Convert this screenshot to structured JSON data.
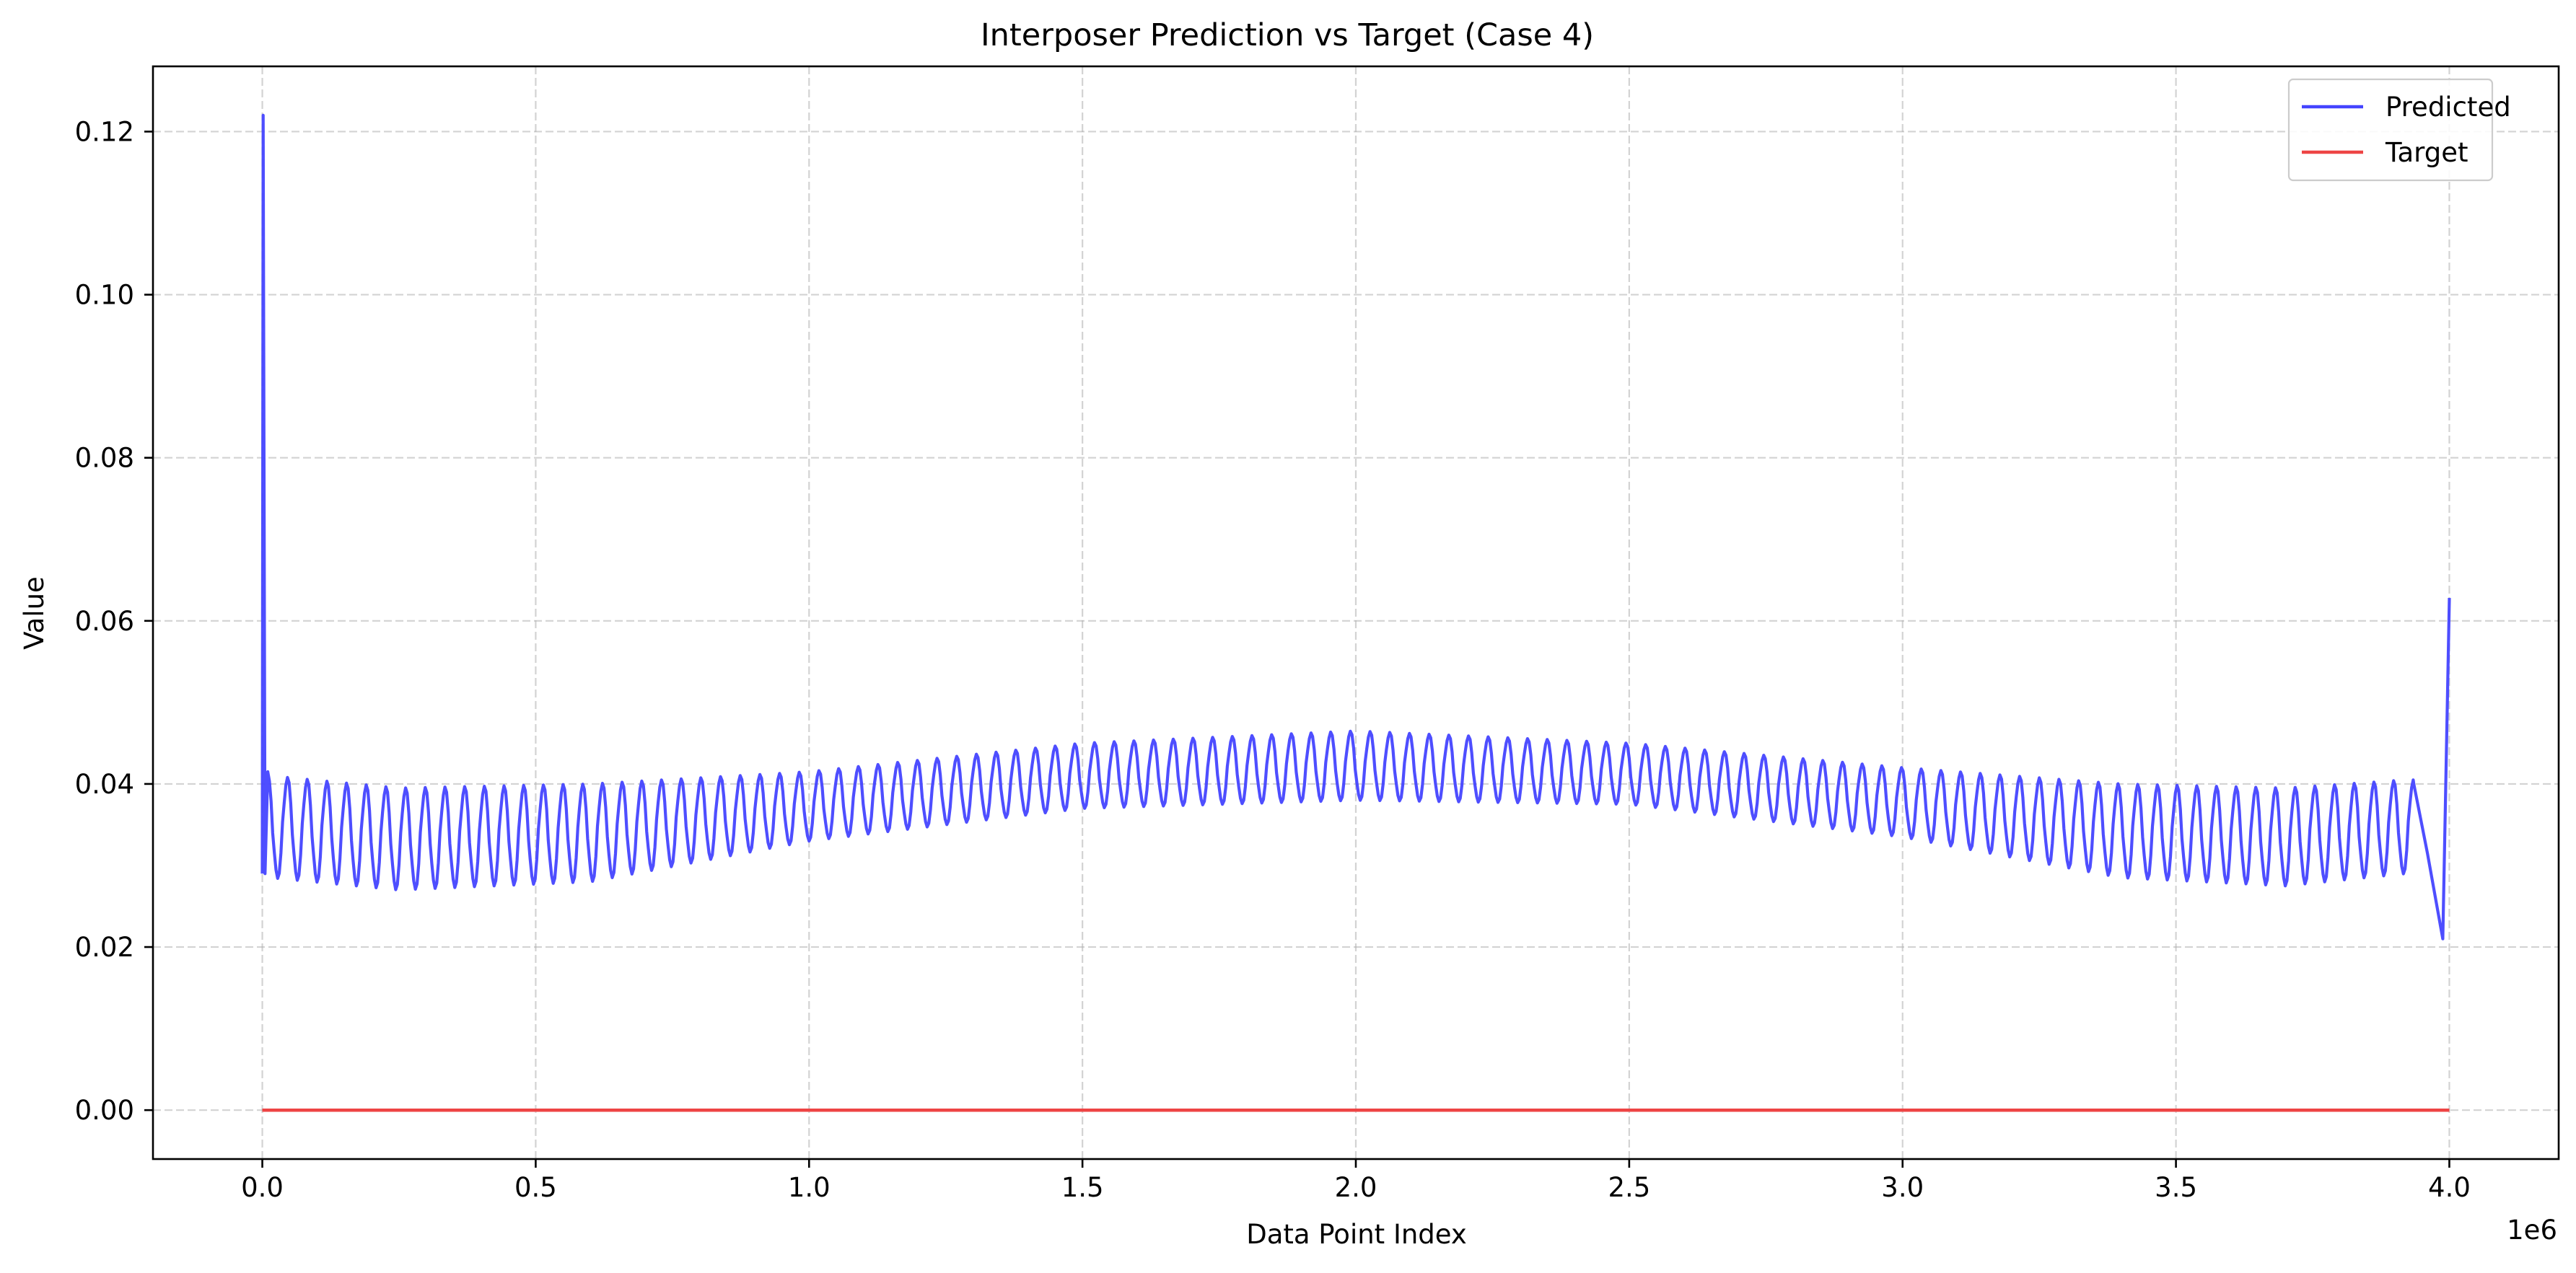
{
  "chart_data": {
    "type": "line",
    "title": "Interposer Prediction vs Target (Case 4)",
    "xlabel": "Data Point Index",
    "ylabel": "Value",
    "x_offset_label": "1e6",
    "xlim": [
      -200000,
      4200000
    ],
    "ylim": [
      -0.006,
      0.128
    ],
    "x_ticks": [
      0,
      500000,
      1000000,
      1500000,
      2000000,
      2500000,
      3000000,
      3500000,
      4000000
    ],
    "x_tick_labels": [
      "0.0",
      "0.5",
      "1.0",
      "1.5",
      "2.0",
      "2.5",
      "3.0",
      "3.5",
      "4.0"
    ],
    "y_ticks": [
      0.0,
      0.02,
      0.04,
      0.06,
      0.08,
      0.1,
      0.12
    ],
    "y_tick_labels": [
      "0.00",
      "0.02",
      "0.04",
      "0.06",
      "0.08",
      "0.10",
      "0.12"
    ],
    "grid": true,
    "legend_position": "top-right",
    "series": [
      {
        "name": "Predicted",
        "color": "#4444ff",
        "oscillation_period": 36000,
        "envelope": {
          "x": [
            15000,
            250000,
            600000,
            1000000,
            1500000,
            2000000,
            2500000,
            3000000,
            3400000,
            3700000,
            3920000
          ],
          "low": [
            0.0285,
            0.027,
            0.028,
            0.033,
            0.037,
            0.038,
            0.0375,
            0.0335,
            0.0285,
            0.0275,
            0.029
          ],
          "high": [
            0.041,
            0.0395,
            0.04,
            0.0415,
            0.045,
            0.0465,
            0.045,
            0.042,
            0.04,
            0.0395,
            0.0405
          ]
        },
        "start": [
          [
            0,
            0.029
          ],
          [
            1500,
            0.122
          ],
          [
            5000,
            0.029
          ],
          [
            10000,
            0.0415
          ]
        ],
        "end": [
          [
            3935000,
            0.04
          ],
          [
            3960000,
            0.0315
          ],
          [
            3988000,
            0.021
          ],
          [
            4000000,
            0.0628
          ]
        ]
      },
      {
        "name": "Target",
        "color": "#ee4444",
        "x": [
          0,
          4000000
        ],
        "values": [
          0.0,
          0.0
        ]
      }
    ]
  }
}
